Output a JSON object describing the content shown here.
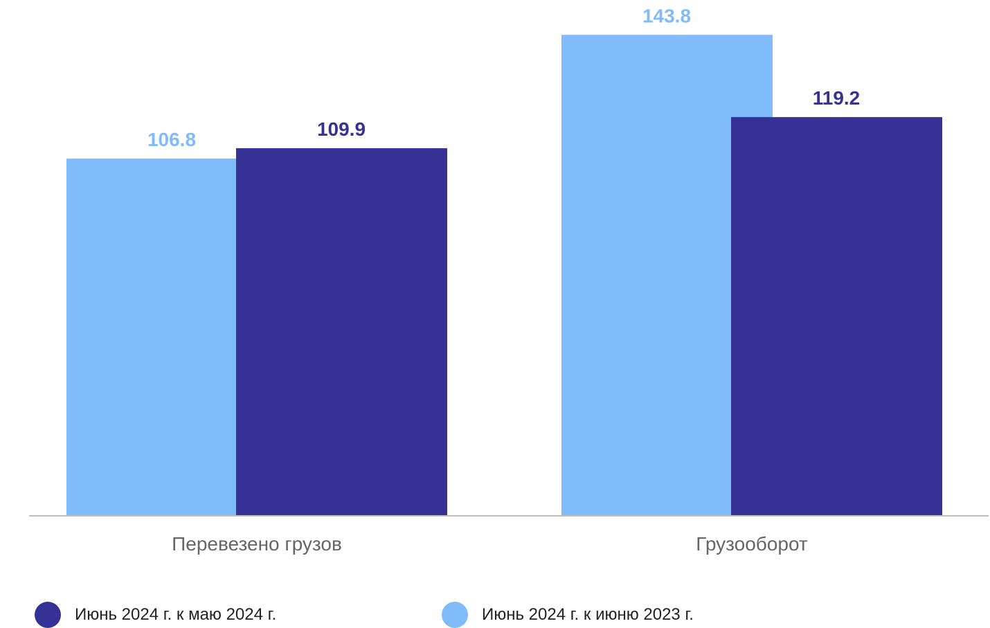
{
  "chart_data": {
    "type": "bar",
    "categories": [
      "Перевезено грузов",
      "Грузооборот"
    ],
    "series": [
      {
        "name": "Июнь 2024 г. к июню 2023 г.",
        "values": [
          106.8,
          143.8
        ],
        "color": "#80bbfb"
      },
      {
        "name": "Июнь 2024 г. к маю 2024 г.",
        "values": [
          109.9,
          119.2
        ],
        "color": "#363194"
      }
    ],
    "value_labels": {
      "series_0": [
        "106.8",
        "143.8"
      ],
      "series_1": [
        "109.9",
        "119.2"
      ]
    },
    "ylim": [
      0,
      148
    ],
    "grid": false,
    "axis_line_color": "#bdbdbd",
    "category_label_color": "#666666",
    "legend": {
      "placement": "bottom",
      "items": [
        {
          "label": "Июнь 2024 г. к маю 2024 г.",
          "color": "#363194",
          "icon": "circle-marker-icon"
        },
        {
          "label": "Июнь 2024 г. к июню 2023 г.",
          "color": "#80bbfb",
          "icon": "circle-marker-icon"
        }
      ]
    }
  }
}
